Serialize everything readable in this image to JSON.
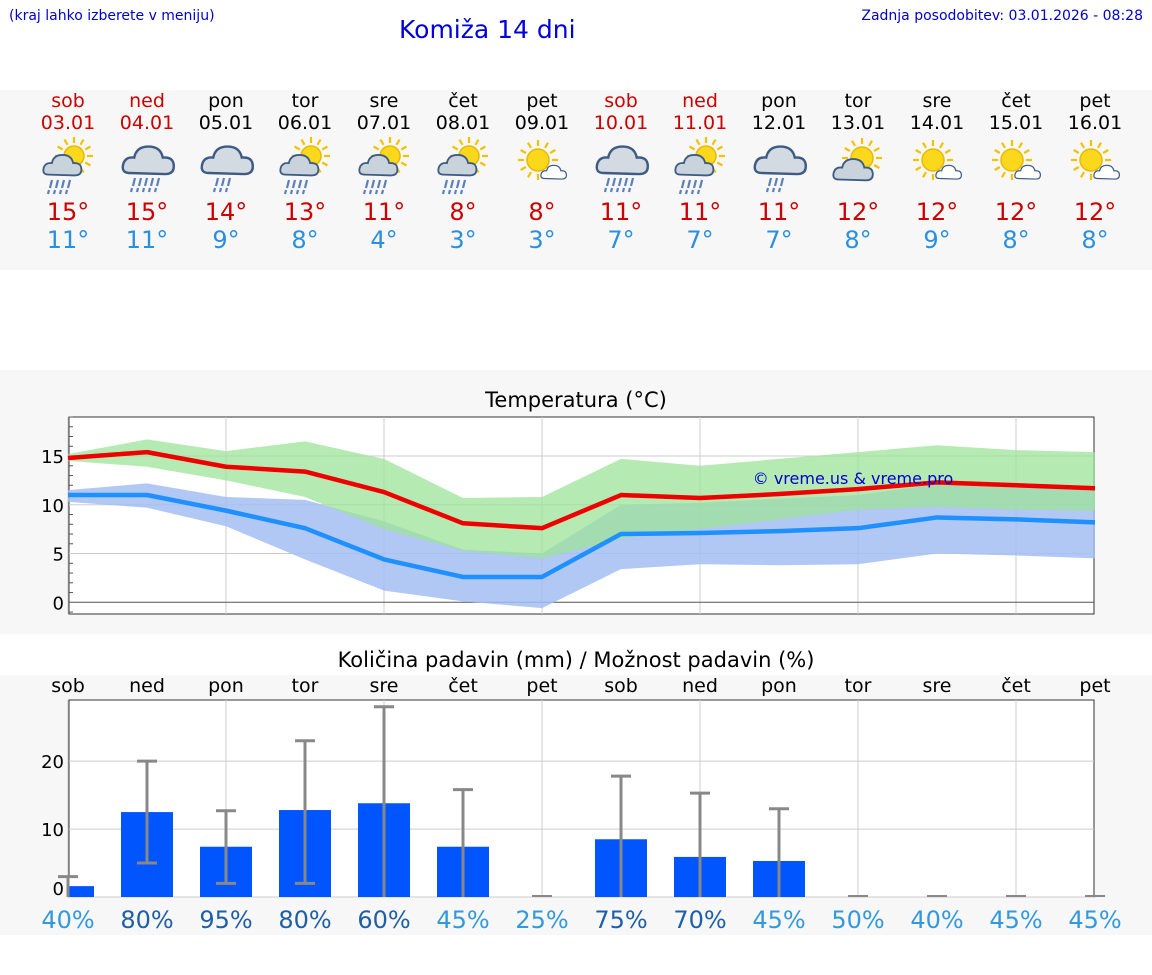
{
  "header": {
    "menu_hint": "(kraj lahko izberete v meniju)",
    "title": "Komiža 14 dni",
    "updated": "Zadnja posodobitev: 03.01.2026 - 08:28"
  },
  "days": [
    {
      "name": "sob",
      "date": "03.01",
      "weekend": true,
      "icon": "partly-sunny-rain-icon",
      "icon_kind": "sun-rain",
      "tmax": "15°",
      "tmin": "11°"
    },
    {
      "name": "ned",
      "date": "04.01",
      "weekend": true,
      "icon": "cloud-rain-icon",
      "icon_kind": "cloud-rain",
      "tmax": "15°",
      "tmin": "11°"
    },
    {
      "name": "pon",
      "date": "05.01",
      "weekend": false,
      "icon": "cloud-rain-icon",
      "icon_kind": "cloud-light-rain",
      "tmax": "14°",
      "tmin": "9°"
    },
    {
      "name": "tor",
      "date": "06.01",
      "weekend": false,
      "icon": "partly-sunny-rain-icon",
      "icon_kind": "sun-rain",
      "tmax": "13°",
      "tmin": "8°"
    },
    {
      "name": "sre",
      "date": "07.01",
      "weekend": false,
      "icon": "partly-sunny-rain-icon",
      "icon_kind": "sun-rain",
      "tmax": "11°",
      "tmin": "4°"
    },
    {
      "name": "čet",
      "date": "08.01",
      "weekend": false,
      "icon": "partly-sunny-rain-icon",
      "icon_kind": "sun-rain",
      "tmax": "8°",
      "tmin": "3°"
    },
    {
      "name": "pet",
      "date": "09.01",
      "weekend": false,
      "icon": "sun-small-cloud-icon",
      "icon_kind": "sun-small-cloud",
      "tmax": "8°",
      "tmin": "3°"
    },
    {
      "name": "sob",
      "date": "10.01",
      "weekend": true,
      "icon": "cloud-rain-icon",
      "icon_kind": "cloud-rain",
      "tmax": "11°",
      "tmin": "7°"
    },
    {
      "name": "ned",
      "date": "11.01",
      "weekend": true,
      "icon": "partly-sunny-rain-icon",
      "icon_kind": "sun-rain",
      "tmax": "11°",
      "tmin": "7°"
    },
    {
      "name": "pon",
      "date": "12.01",
      "weekend": false,
      "icon": "cloud-rain-icon",
      "icon_kind": "cloud-light-rain",
      "tmax": "11°",
      "tmin": "7°"
    },
    {
      "name": "tor",
      "date": "13.01",
      "weekend": false,
      "icon": "partly-cloudy-icon",
      "icon_kind": "sun-cloud",
      "tmax": "12°",
      "tmin": "8°"
    },
    {
      "name": "sre",
      "date": "14.01",
      "weekend": false,
      "icon": "sun-small-cloud-icon",
      "icon_kind": "sun-small-cloud",
      "tmax": "12°",
      "tmin": "9°"
    },
    {
      "name": "čet",
      "date": "15.01",
      "weekend": false,
      "icon": "sun-small-cloud-icon",
      "icon_kind": "sun-small-cloud",
      "tmax": "12°",
      "tmin": "8°"
    },
    {
      "name": "pet",
      "date": "16.01",
      "weekend": false,
      "icon": "sun-small-cloud-icon",
      "icon_kind": "sun-small-cloud",
      "tmax": "12°",
      "tmin": "8°"
    }
  ],
  "colors": {
    "weekend": "#cc0000",
    "max_line": "#ee0000",
    "min_line": "#1e90ff",
    "max_band": "#9ee39a",
    "min_band": "#a3bdf2",
    "bar": "#0055ff",
    "error_bar": "#888888",
    "prob_high": "#1f5fa8",
    "prob_low": "#3399dd"
  },
  "chart_data": [
    {
      "type": "line",
      "title": "Temperatura (°C)",
      "watermark": "© vreme.us & vreme.pro",
      "x": [
        "03.01",
        "04.01",
        "05.01",
        "06.01",
        "07.01",
        "08.01",
        "09.01",
        "10.01",
        "11.01",
        "12.01",
        "13.01",
        "14.01",
        "15.01",
        "16.01"
      ],
      "ylim": [
        -1.2,
        19
      ],
      "yticks": [
        0,
        5,
        10,
        15
      ],
      "series": [
        {
          "name": "max",
          "values": [
            14.8,
            15.4,
            13.9,
            13.4,
            11.3,
            8.1,
            7.6,
            11.0,
            10.7,
            11.1,
            11.6,
            12.3,
            12.0,
            11.7
          ],
          "band_low": [
            14.5,
            13.9,
            12.5,
            10.8,
            7.5,
            5.3,
            4.5,
            6.5,
            7.5,
            8.5,
            9.5,
            9.8,
            9.5,
            9.4
          ],
          "band_high": [
            15.2,
            16.7,
            15.5,
            16.5,
            14.7,
            10.7,
            10.8,
            14.7,
            14.0,
            14.7,
            15.4,
            16.1,
            15.6,
            15.4
          ]
        },
        {
          "name": "min",
          "values": [
            11.0,
            11.0,
            9.4,
            7.6,
            4.4,
            2.6,
            2.6,
            7.0,
            7.1,
            7.3,
            7.6,
            8.7,
            8.5,
            8.2
          ],
          "band_low": [
            10.3,
            9.7,
            7.8,
            4.4,
            1.2,
            0.1,
            -0.6,
            3.4,
            3.9,
            3.8,
            3.9,
            5.0,
            4.8,
            4.5
          ],
          "band_high": [
            11.5,
            12.2,
            10.8,
            10.5,
            8.3,
            5.4,
            5.0,
            10.0,
            10.2,
            10.6,
            11.0,
            12.1,
            11.8,
            11.7
          ]
        }
      ]
    },
    {
      "type": "bar",
      "title": "Količina padavin (mm) / Možnost padavin (%)",
      "categories": [
        "sob",
        "ned",
        "pon",
        "tor",
        "sre",
        "čet",
        "pet",
        "sob",
        "ned",
        "pon",
        "tor",
        "sre",
        "čet",
        "pet"
      ],
      "values": [
        1.6,
        12.5,
        7.4,
        12.8,
        13.8,
        7.4,
        0,
        8.5,
        5.9,
        5.3,
        0,
        0,
        0,
        0
      ],
      "error_low": [
        0,
        5.0,
        2.0,
        2.0,
        0,
        0,
        0,
        0,
        0,
        0,
        0,
        0,
        0,
        0
      ],
      "error_high": [
        3.0,
        20.0,
        12.7,
        23.0,
        28.0,
        15.8,
        0,
        17.8,
        15.3,
        13.0,
        0,
        0,
        0,
        0
      ],
      "probability": [
        "40%",
        "80%",
        "95%",
        "80%",
        "60%",
        "45%",
        "25%",
        "75%",
        "70%",
        "45%",
        "50%",
        "40%",
        "45%",
        "45%"
      ],
      "ylim": [
        0,
        29
      ],
      "yticks": [
        0,
        10,
        20
      ]
    }
  ]
}
